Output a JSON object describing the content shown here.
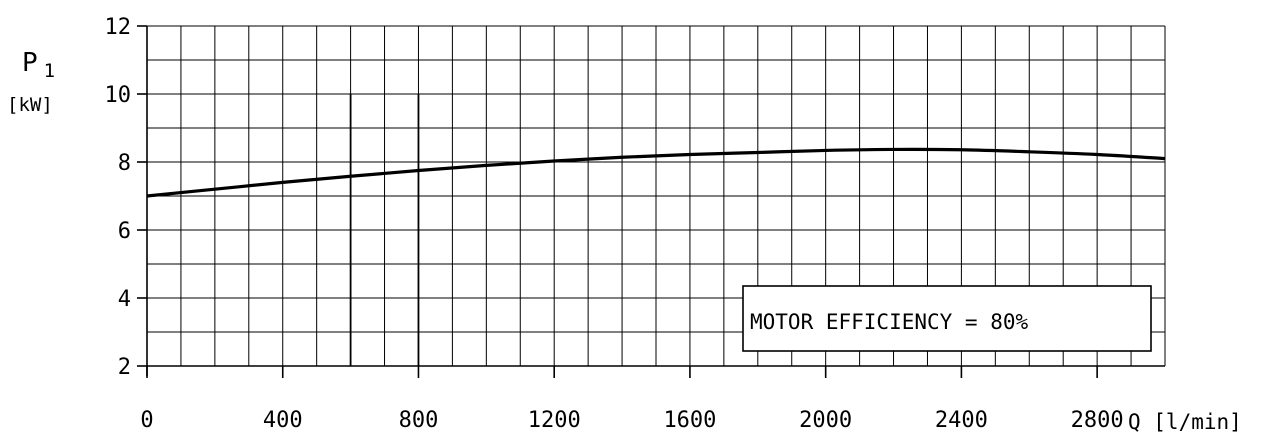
{
  "chart_data": {
    "type": "line",
    "ylabel_main": "P",
    "ylabel_sub": "1",
    "ylabel_unit": "[kW]",
    "xlabel": "Q [l/min]",
    "xlim": [
      0,
      3000
    ],
    "ylim": [
      2,
      12
    ],
    "x_ticks": [
      0,
      400,
      800,
      1200,
      1600,
      2000,
      2400,
      2800
    ],
    "x_tick_labels": [
      "0",
      "400",
      "800",
      "1200",
      "1600",
      "2000",
      "2400",
      "2800"
    ],
    "y_ticks": [
      2,
      4,
      6,
      8,
      10,
      12
    ],
    "y_tick_labels": [
      "2",
      "4",
      "6",
      "8",
      "10",
      "12"
    ],
    "grid": true,
    "x_grid_step": 100,
    "y_grid_step": 1,
    "annotation": "MOTOR EFFICIENCY = 80%",
    "series": [
      {
        "x": [
          0,
          200,
          400,
          600,
          800,
          1000,
          1200,
          1400,
          1600,
          1800,
          2000,
          2200,
          2400,
          2600,
          2800,
          3000
        ],
        "y": [
          7.0,
          7.2,
          7.4,
          7.58,
          7.75,
          7.9,
          8.03,
          8.14,
          8.22,
          8.28,
          8.34,
          8.37,
          8.36,
          8.3,
          8.22,
          8.1
        ]
      }
    ]
  }
}
